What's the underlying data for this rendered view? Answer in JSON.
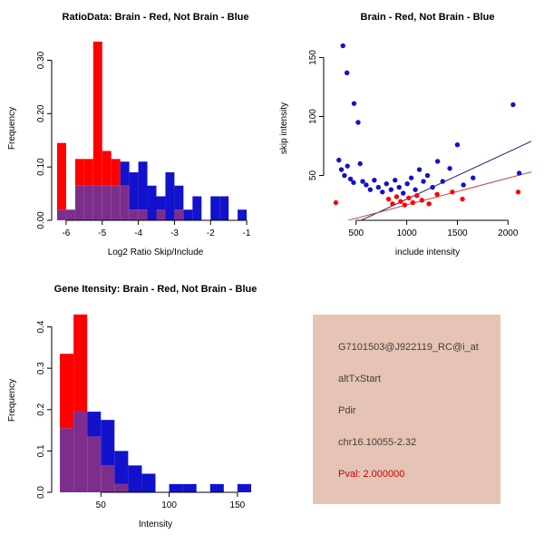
{
  "colors": {
    "red": "#FF0000",
    "blue": "#1212CC",
    "overlap": "#7D2E8D",
    "line_blue": "#202080",
    "line_red": "#C04545",
    "axis": "#000000"
  },
  "chart_data": [
    {
      "id": "ratio-hist",
      "type": "histogram-overlay",
      "title": "RatioData: Brain - Red, Not Brain - Blue",
      "xlabel": "Log2 Ratio Skip/Include",
      "ylabel": "Frequency",
      "xlim": [
        -6.4,
        -0.65
      ],
      "ylim": [
        0,
        0.345
      ],
      "xticks": [
        -6,
        -5,
        -4,
        -3,
        -2,
        -1
      ],
      "yticks": [
        0,
        0.1,
        0.2,
        0.3
      ],
      "ytick_dec": 2,
      "bins": {
        "start": -6.25,
        "width": 0.25,
        "red": [
          0.145,
          0.02,
          0.115,
          0.115,
          0.335,
          0.13,
          0.115,
          0.065,
          0.02,
          0.02,
          0,
          0.02,
          0,
          0.02,
          0,
          0,
          0,
          0,
          0,
          0,
          0,
          0
        ],
        "blue": [
          0.02,
          0.02,
          0.065,
          0.065,
          0.065,
          0.065,
          0.065,
          0.11,
          0.09,
          0.11,
          0.065,
          0.045,
          0.09,
          0.065,
          0.02,
          0.045,
          0,
          0.045,
          0.045,
          0,
          0.02,
          0
        ]
      }
    },
    {
      "id": "scatter",
      "type": "scatter",
      "title": "Brain - Red, Not Brain - Blue",
      "xlabel": "include intensity",
      "ylabel": "skip intensity",
      "xlim": [
        180,
        2230
      ],
      "ylim": [
        12,
        168
      ],
      "xticks": [
        500,
        1000,
        1500,
        2000
      ],
      "yticks": [
        50,
        100,
        150
      ],
      "blue_points": [
        [
          370,
          160
        ],
        [
          410,
          137
        ],
        [
          480,
          111
        ],
        [
          520,
          95
        ],
        [
          330,
          63
        ],
        [
          355,
          55
        ],
        [
          385,
          50
        ],
        [
          415,
          58
        ],
        [
          445,
          47
        ],
        [
          475,
          44
        ],
        [
          540,
          60
        ],
        [
          565,
          45
        ],
        [
          600,
          42
        ],
        [
          640,
          38
        ],
        [
          680,
          46
        ],
        [
          720,
          40
        ],
        [
          760,
          36
        ],
        [
          800,
          43
        ],
        [
          845,
          38
        ],
        [
          885,
          46
        ],
        [
          925,
          40
        ],
        [
          965,
          35
        ],
        [
          1005,
          43
        ],
        [
          1045,
          48
        ],
        [
          1085,
          38
        ],
        [
          1125,
          55
        ],
        [
          1165,
          45
        ],
        [
          1205,
          50
        ],
        [
          1255,
          40
        ],
        [
          1305,
          62
        ],
        [
          1355,
          45
        ],
        [
          1425,
          56
        ],
        [
          1500,
          76
        ],
        [
          1560,
          42
        ],
        [
          1655,
          48
        ],
        [
          2050,
          110
        ],
        [
          2110,
          52
        ]
      ],
      "red_points": [
        [
          300,
          27
        ],
        [
          820,
          30
        ],
        [
          860,
          26
        ],
        [
          900,
          32
        ],
        [
          940,
          28
        ],
        [
          980,
          25
        ],
        [
          1020,
          31
        ],
        [
          1060,
          27
        ],
        [
          1100,
          33
        ],
        [
          1150,
          29
        ],
        [
          1220,
          26
        ],
        [
          1300,
          34
        ],
        [
          1450,
          36
        ],
        [
          1550,
          30
        ],
        [
          2100,
          36
        ]
      ],
      "blue_line": [
        [
          250,
          0
        ],
        [
          2230,
          79
        ]
      ],
      "red_line": [
        [
          250,
          8
        ],
        [
          2230,
          53
        ]
      ]
    },
    {
      "id": "gene-hist",
      "type": "histogram-overlay",
      "title": "Gene Itensity: Brain - Red, Not Brain - Blue",
      "xlabel": "Intensity",
      "ylabel": "Frequency",
      "xlim": [
        14,
        166
      ],
      "ylim": [
        0,
        0.445
      ],
      "xticks": [
        50,
        100,
        150
      ],
      "yticks": [
        0,
        0.1,
        0.2,
        0.3,
        0.4
      ],
      "ytick_dec": 1,
      "bins": {
        "start": 20,
        "width": 10,
        "red": [
          0.335,
          0.43,
          0.135,
          0.065,
          0.02,
          0,
          0,
          0,
          0,
          0,
          0,
          0,
          0,
          0
        ],
        "blue": [
          0.155,
          0.195,
          0.195,
          0.175,
          0.1,
          0.065,
          0.045,
          0,
          0.02,
          0.02,
          0,
          0.02,
          0,
          0.02
        ]
      }
    }
  ],
  "info": {
    "bg": "#E5C4B5",
    "text_color": "#404040",
    "pval_color": "#CC0000",
    "lines": [
      "G7101503@J922119_RC@i_at",
      "altTxStart",
      "Pdir",
      "chr16.10055-2.32"
    ],
    "pval": "Pval: 2.000000"
  }
}
